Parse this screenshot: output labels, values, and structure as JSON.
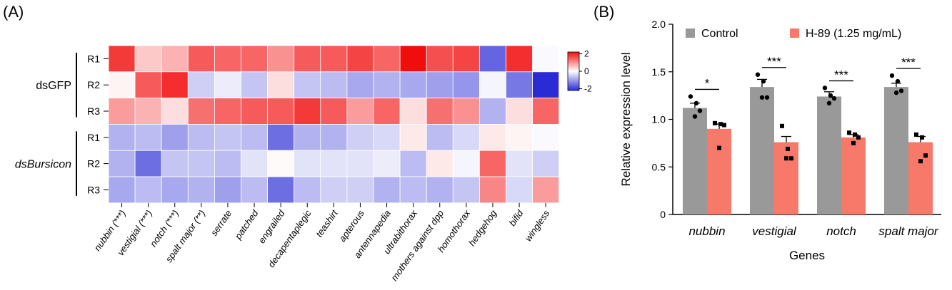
{
  "chart_data": [
    {
      "type": "heatmap",
      "panel_label": "(A)",
      "columns": [
        "nubbin (***)",
        "vestigial (***)",
        "notch (***)",
        "spalt major (**)",
        "serrate",
        "patched",
        "engrailed",
        "decapentaplegic",
        "teashirt",
        "apterous",
        "antennapedia",
        "ultrabithorax",
        "mothers against dpp",
        "homothorax",
        "hedgehog",
        "bifid",
        "wingless"
      ],
      "groups": [
        {
          "name": "dsGFP",
          "italic": false,
          "rows": [
            "R1",
            "R2",
            "R3"
          ]
        },
        {
          "name": "dsBursicon",
          "italic": true,
          "rows": [
            "R1",
            "R2",
            "R3"
          ]
        }
      ],
      "values": [
        [
          1.8,
          0.5,
          0.7,
          1.5,
          1.4,
          1.4,
          1.0,
          1.5,
          1.5,
          1.7,
          1.4,
          2.2,
          1.6,
          1.7,
          -1.6,
          1.9,
          -0.05
        ],
        [
          0.1,
          1.5,
          1.9,
          -0.5,
          -0.2,
          -0.6,
          0.3,
          -0.6,
          -0.7,
          -0.9,
          -0.8,
          -0.9,
          -1.0,
          -1.1,
          -0.1,
          -1.4,
          -2.2
        ],
        [
          0.9,
          0.7,
          0.3,
          1.3,
          1.4,
          1.5,
          1.5,
          1.8,
          1.5,
          0.9,
          1.4,
          0.3,
          1.3,
          1.0,
          -0.8,
          0.3,
          1.4
        ],
        [
          -0.8,
          -0.7,
          -1.0,
          -0.7,
          -0.6,
          -0.7,
          -1.5,
          -0.8,
          -0.8,
          -0.5,
          -0.4,
          0.2,
          -0.7,
          -0.4,
          0.2,
          0.1,
          -0.05
        ],
        [
          -0.8,
          -1.5,
          -0.6,
          -0.6,
          -0.7,
          -0.3,
          0.05,
          -0.3,
          -0.3,
          -0.3,
          -0.2,
          -0.7,
          0.2,
          -0.1,
          1.4,
          -0.3,
          -0.5
        ],
        [
          -0.9,
          -0.7,
          -0.9,
          -0.8,
          -1.0,
          -0.7,
          -1.5,
          -0.7,
          -0.5,
          -0.5,
          -0.8,
          -0.7,
          -0.8,
          -0.6,
          1.1,
          -0.4,
          0.9
        ]
      ],
      "colorbar": {
        "ticks": [
          2,
          0,
          -2
        ],
        "min": -2.2,
        "max": 2.2,
        "low_color": "#2b2bd6",
        "mid_color": "#ffffff",
        "high_color": "#f20d0d"
      }
    },
    {
      "type": "bar",
      "panel_label": "(B)",
      "categories": [
        "nubbin",
        "vestigial",
        "notch",
        "spalt major"
      ],
      "ylabel": "Relative expression level",
      "xlabel": "Genes",
      "ylim": [
        0,
        2.0
      ],
      "yticks": [
        "0",
        "0.5",
        "1.0",
        "1.5",
        "2.0"
      ],
      "legend_position": "top",
      "series": [
        {
          "name": "Control",
          "color": "#999999",
          "values": [
            1.12,
            1.34,
            1.24,
            1.34
          ],
          "errors": [
            0.05,
            0.08,
            0.05,
            0.04
          ],
          "points": [
            [
              1.24,
              1.17,
              1.09,
              1.03
            ],
            [
              1.47,
              1.4,
              1.23,
              1.23
            ],
            [
              1.33,
              1.25,
              1.22,
              1.17
            ],
            [
              1.46,
              1.4,
              1.3,
              1.28
            ]
          ]
        },
        {
          "name": "H-89 (1.25 mg/mL)",
          "color": "#f7796a",
          "values": [
            0.9,
            0.76,
            0.81,
            0.76
          ],
          "errors": [
            0.05,
            0.06,
            0.03,
            0.06
          ],
          "points": [
            [
              0.96,
              0.95,
              0.94,
              0.7
            ],
            [
              0.93,
              0.69,
              0.59,
              0.59
            ],
            [
              0.86,
              0.84,
              0.81,
              0.75
            ],
            [
              0.84,
              0.81,
              0.62,
              0.56
            ]
          ]
        }
      ],
      "significance": [
        "*",
        "***",
        "***",
        "***"
      ]
    }
  ]
}
